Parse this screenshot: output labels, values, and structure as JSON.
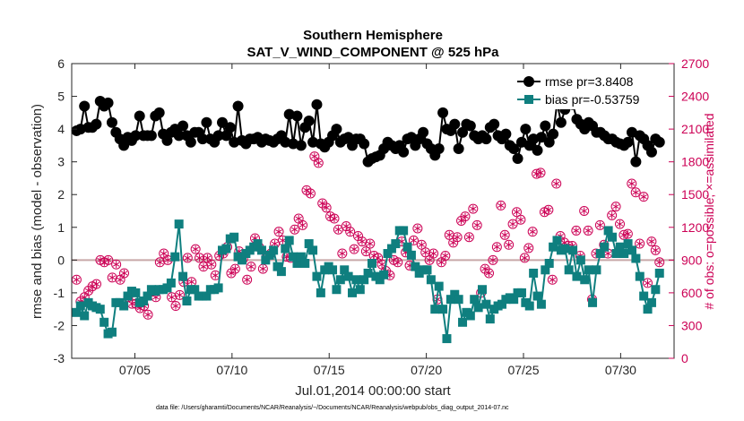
{
  "chart_data": {
    "type": "line",
    "title": "Southern Hemisphere",
    "subtitle": "SAT_V_WIND_COMPONENT @ 525 hPa",
    "xlabel": "Jul.01,2014 00:00:00 start",
    "ylabel": "rmse and bias (model - observation)",
    "y2label": "# of obs: o=possible; ×=assimilated",
    "footnote": "data file: /Users/gharamti/Documents/NCAR/Reanalysis/~/Documents/NCAR/Reanalysis/webpub/obs_diag_output_2014-07.nc",
    "xlim": [
      0.75,
      31.75
    ],
    "ylim": [
      -3,
      6
    ],
    "y2lim": [
      0,
      2700
    ],
    "x_ticks": [
      4,
      9,
      14,
      19,
      24,
      29
    ],
    "x_tick_labels": [
      "07/05",
      "07/10",
      "07/15",
      "07/20",
      "07/25",
      "07/30"
    ],
    "y_ticks": [
      -3,
      -2,
      -1,
      0,
      1,
      2,
      3,
      4,
      5,
      6
    ],
    "y2_ticks": [
      0,
      300,
      600,
      900,
      1200,
      1500,
      1800,
      2100,
      2400,
      2700
    ],
    "zero_line": 0,
    "colors": {
      "rmse": "#000000",
      "bias": "#0f7f7f",
      "obs": "#cc0055",
      "zero": "#c8a8a8"
    },
    "series": [
      {
        "name": "rmse pr=3.8408",
        "marker": "circle",
        "values": [
          3.95,
          4.0,
          4.7,
          4.05,
          4.05,
          4.15,
          4.85,
          4.7,
          4.8,
          4.2,
          3.9,
          3.7,
          3.5,
          3.75,
          3.65,
          3.8,
          4.4,
          3.8,
          3.8,
          3.8,
          4.4,
          4.5,
          3.85,
          3.65,
          3.9,
          4.0,
          3.8,
          4.1,
          3.8,
          3.6,
          3.9,
          3.9,
          3.7,
          4.2,
          3.7,
          3.6,
          3.8,
          4.2,
          3.8,
          4.05,
          3.6,
          4.7,
          3.65,
          3.55,
          3.7,
          3.7,
          3.75,
          3.6,
          3.7,
          3.65,
          3.6,
          3.7,
          3.8,
          3.6,
          4.45,
          3.55,
          4.4,
          3.5,
          4.05,
          4.25,
          3.6,
          4.75,
          3.55,
          3.45,
          3.6,
          3.8,
          4.0,
          3.6,
          3.7,
          3.75,
          3.5,
          3.7,
          3.7,
          3.55,
          3.0,
          3.1,
          3.15,
          3.2,
          3.4,
          3.6,
          3.5,
          3.4,
          3.5,
          3.3,
          3.7,
          3.75,
          3.5,
          3.7,
          3.9,
          3.55,
          3.4,
          3.2,
          3.4,
          4.5,
          4.0,
          3.95,
          4.15,
          3.4,
          3.9,
          4.15,
          4.1,
          3.8,
          3.7,
          3.8,
          3.7,
          4.05,
          4.15,
          3.8,
          3.7,
          3.85,
          3.5,
          3.4,
          3.1,
          3.6,
          4.0,
          3.5,
          3.7,
          3.35,
          3.75,
          4.1,
          3.6,
          3.85,
          4.8,
          4.2,
          4.6,
          4.9,
          4.75,
          4.3,
          4.15,
          4.0,
          4.2,
          4.1,
          3.9,
          3.9,
          3.8,
          3.7,
          3.7,
          3.6,
          3.55,
          3.5,
          3.6,
          3.9,
          3.0,
          3.8,
          3.7,
          3.5,
          3.3,
          3.7,
          3.6
        ]
      },
      {
        "name": "bias pr=-0.53759",
        "marker": "square",
        "values": [
          -1.6,
          -1.4,
          -1.7,
          -1.3,
          -1.4,
          -1.45,
          -1.5,
          -1.9,
          -2.25,
          -2.2,
          -1.3,
          -1.3,
          -1.4,
          -1.1,
          -0.95,
          -1.0,
          -1.3,
          -1.25,
          -1.1,
          -0.9,
          -0.95,
          -0.9,
          -0.9,
          -0.85,
          -0.7,
          0.1,
          1.1,
          -0.5,
          -1.25,
          -0.9,
          -0.9,
          -1.1,
          -1.1,
          -1.1,
          -0.9,
          -0.9,
          -0.85,
          0.3,
          0.35,
          0.65,
          0.7,
          0.1,
          0.0,
          0.2,
          0.3,
          0.4,
          0.5,
          0.3,
          0.0,
          0.15,
          0.3,
          -0.2,
          -0.35,
          0.35,
          0.6,
          0.1,
          -0.1,
          0.1,
          -0.1,
          0.5,
          0.3,
          -0.5,
          -1.0,
          -0.3,
          -0.2,
          -0.3,
          -0.9,
          -0.6,
          -0.3,
          -0.5,
          -1.0,
          -0.6,
          -0.9,
          -0.6,
          -0.4,
          -0.1,
          -0.5,
          -0.6,
          -0.45,
          0.2,
          0.35,
          0.5,
          0.9,
          0.9,
          0.4,
          0.15,
          -0.2,
          -0.4,
          -0.3,
          -0.3,
          -0.6,
          -1.5,
          -0.8,
          -1.5,
          -2.4,
          -1.2,
          -1.05,
          -1.2,
          -1.9,
          -1.6,
          -1.7,
          -1.2,
          -1.45,
          -0.9,
          -1.35,
          -1.8,
          -1.5,
          -1.4,
          -1.35,
          -1.2,
          -1.15,
          -1.2,
          -1.0,
          -1.0,
          -1.3,
          -1.4,
          -0.4,
          -1.1,
          -1.35,
          -0.3,
          -0.1,
          0.4,
          0.6,
          0.3,
          0.35,
          -0.3,
          0.3,
          -0.5,
          0.0,
          -0.6,
          -0.3,
          -1.3,
          -0.3,
          0.2,
          0.4,
          0.9,
          0.7,
          0.2,
          0.4,
          0.2,
          0.5,
          0.3,
          0.05,
          -0.5,
          -1.1,
          -1.5,
          -1.3,
          -0.9,
          -0.4
        ]
      },
      {
        "name": "# of obs possible",
        "marker": "circle-open",
        "axis": "right",
        "values": [
          720,
          520,
          560,
          620,
          660,
          680,
          900,
          880,
          900,
          740,
          860,
          720,
          780,
          560,
          500,
          500,
          460,
          480,
          400,
          610,
          560,
          880,
          960,
          900,
          560,
          480,
          580,
          700,
          920,
          700,
          1000,
          920,
          840,
          920,
          860,
          760,
          940,
          960,
          1020,
          780,
          820,
          980,
          910,
          720,
          840,
          1100,
          1020,
          820,
          940,
          960,
          1050,
          1160,
          1080,
          930,
          920,
          1180,
          1280,
          1220,
          1540,
          1510,
          1850,
          1790,
          1420,
          1380,
          1300,
          1280,
          1180,
          960,
          1210,
          1160,
          1000,
          1120,
          1070,
          980,
          1050,
          940,
          920,
          860,
          800,
          760,
          900,
          880,
          1070,
          970,
          850,
          1080,
          1190,
          1040,
          970,
          900,
          960,
          540,
          880,
          940,
          1130,
          1060,
          1110,
          1260,
          1300,
          1110,
          1370,
          1220,
          600,
          820,
          780,
          900,
          1020,
          1400,
          1130,
          1040,
          1230,
          1340,
          1270,
          920,
          1010,
          1160,
          1690,
          1700,
          1340,
          1360,
          720,
          1600,
          1120,
          1060,
          1030,
          1030,
          1170,
          940,
          1350,
          1170,
          540,
          960,
          1220,
          1040,
          960,
          1310,
          1390,
          1230,
          1130,
          1140,
          1600,
          1520,
          1050,
          1480,
          690,
          1070,
          990,
          880
        ]
      },
      {
        "name": "# of obs assimilated",
        "marker": "asterisk",
        "axis": "right",
        "values": [
          720,
          520,
          560,
          620,
          660,
          680,
          900,
          880,
          900,
          740,
          860,
          720,
          780,
          560,
          500,
          500,
          460,
          480,
          400,
          610,
          560,
          880,
          960,
          900,
          560,
          480,
          580,
          700,
          920,
          700,
          1000,
          920,
          840,
          920,
          860,
          760,
          940,
          960,
          1020,
          780,
          820,
          980,
          910,
          720,
          840,
          1100,
          1020,
          820,
          940,
          960,
          1050,
          1160,
          1080,
          930,
          920,
          1180,
          1280,
          1220,
          1540,
          1510,
          1850,
          1790,
          1420,
          1380,
          1300,
          1280,
          1180,
          960,
          1210,
          1160,
          1000,
          1120,
          1070,
          980,
          1050,
          940,
          920,
          860,
          800,
          760,
          900,
          880,
          1070,
          970,
          850,
          1080,
          1190,
          1040,
          970,
          900,
          960,
          540,
          880,
          940,
          1130,
          1060,
          1110,
          1260,
          1300,
          1110,
          1370,
          1220,
          600,
          820,
          780,
          900,
          1020,
          1400,
          1130,
          1040,
          1230,
          1340,
          1270,
          920,
          1010,
          1160,
          1690,
          1700,
          1340,
          1360,
          720,
          1600,
          1120,
          1060,
          1030,
          1030,
          1170,
          940,
          1350,
          1170,
          540,
          960,
          1220,
          1040,
          960,
          1310,
          1390,
          1230,
          1130,
          1140,
          1600,
          1520,
          1050,
          1480,
          690,
          1070,
          990,
          880
        ]
      }
    ],
    "legend": [
      {
        "label": "rmse pr=3.8408",
        "marker": "circle"
      },
      {
        "label": "bias pr=-0.53759",
        "marker": "square"
      }
    ],
    "legend_position": "top-right",
    "grid": false
  }
}
